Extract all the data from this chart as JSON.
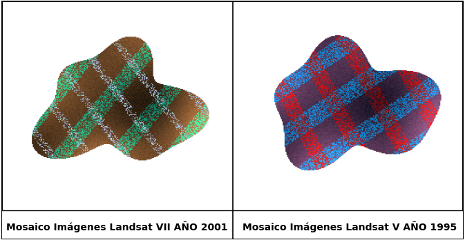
{
  "title_left": "Mosaico Imágenes Landsat VII AÑO 2001",
  "title_right": "Mosaico Imágenes Landsat V AÑO 1995",
  "bg_color": "#ffffff",
  "border_color": "#000000",
  "caption_fontsize": 10,
  "caption_fontstyle": "bold",
  "fig_width": 6.73,
  "fig_height": 3.48,
  "dpi": 100,
  "left_image_path": null,
  "right_image_path": null
}
